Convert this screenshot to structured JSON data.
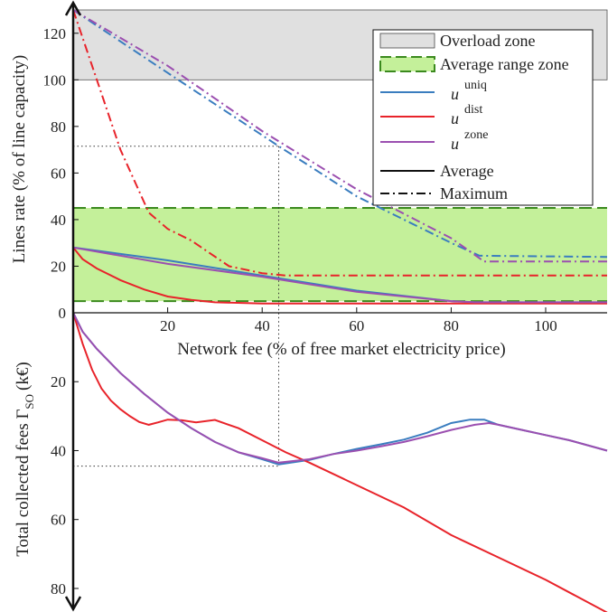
{
  "colors": {
    "uniq": "#3a7dbf",
    "dist": "#e8232a",
    "zone": "#9b4fb0",
    "overload_fill": "#e0e0e0",
    "avg_fill": "#c4f09a",
    "avg_border": "#3b8a1e",
    "guide": "#333333"
  },
  "chart_data": [
    {
      "type": "line",
      "xlabel": "Network fee (% of free market electricity price)",
      "ylabel": "Lines rate (% of line capacity)",
      "xlim": [
        0,
        113
      ],
      "ylim": [
        0,
        130
      ],
      "xticks": [
        20,
        40,
        60,
        80,
        100
      ],
      "yticks": [
        0,
        20,
        40,
        60,
        80,
        100,
        120
      ],
      "grid": false,
      "legend_position": "top-right",
      "legend": {
        "overload": "Overload zone",
        "average_range": "Average range zone",
        "uniq_base": "u",
        "uniq_sup": "uniq",
        "dist_base": "u",
        "dist_sup": "dist",
        "zone_base": "u",
        "zone_sup": "zone",
        "average": "Average",
        "maximum": "Maximum"
      },
      "zones": {
        "overload": [
          100,
          130
        ],
        "average_range": [
          5,
          45
        ]
      },
      "guide": {
        "x": 43.5,
        "y": 71.5
      },
      "series": [
        {
          "name": "u uniq",
          "key": "uniq",
          "stat": "Average",
          "x": [
            0,
            20,
            40,
            60,
            80,
            85,
            113
          ],
          "y": [
            28,
            22.5,
            16,
            9.5,
            5,
            4.5,
            4.5
          ]
        },
        {
          "name": "u uniq",
          "key": "uniq",
          "stat": "Maximum",
          "x": [
            0,
            20,
            43.5,
            60,
            80,
            86,
            113
          ],
          "y": [
            130,
            103,
            71.5,
            50,
            30,
            24.5,
            24
          ]
        },
        {
          "name": "u dist",
          "key": "dist",
          "stat": "Average",
          "x": [
            0,
            2,
            5,
            10,
            15,
            20,
            25,
            30,
            40,
            113
          ],
          "y": [
            28,
            23,
            19,
            14,
            10,
            7,
            5.5,
            4.5,
            4,
            4
          ]
        },
        {
          "name": "u dist",
          "key": "dist",
          "stat": "Maximum",
          "x": [
            0,
            5,
            10,
            16,
            20,
            25,
            33,
            40,
            45,
            113
          ],
          "y": [
            130,
            100,
            70,
            43,
            36,
            31,
            20,
            17,
            16,
            16
          ]
        },
        {
          "name": "u zone",
          "key": "zone",
          "stat": "Average",
          "x": [
            0,
            20,
            40,
            60,
            80,
            85,
            113
          ],
          "y": [
            28,
            21,
            15.5,
            9,
            5,
            4.5,
            4.5
          ]
        },
        {
          "name": "u zone",
          "key": "zone",
          "stat": "Maximum",
          "x": [
            0,
            20,
            40,
            60,
            80,
            87,
            113
          ],
          "y": [
            130,
            106,
            78,
            53,
            32,
            22,
            22
          ]
        }
      ]
    },
    {
      "type": "line",
      "ylabel_base": "Total collected fees Γ",
      "ylabel_sub": "SO",
      "ylabel_unit": "(k€)",
      "xlim": [
        0,
        113
      ],
      "ylim": [
        0,
        85
      ],
      "y_reversed": true,
      "yticks": [
        20,
        40,
        60,
        80
      ],
      "guide": {
        "x": 43.5,
        "y": 44.5
      },
      "series": [
        {
          "name": "u uniq",
          "key": "uniq",
          "x": [
            0,
            2,
            5,
            10,
            15,
            20,
            25,
            30,
            35,
            40,
            43.5,
            50,
            55,
            60,
            65,
            70,
            75,
            80,
            84,
            87,
            90,
            95,
            100,
            105,
            113
          ],
          "y": [
            0,
            5.5,
            10.5,
            17.5,
            23.5,
            29,
            33.5,
            37.5,
            40.5,
            42.5,
            44,
            42.7,
            41,
            39.5,
            38.2,
            36.8,
            34.8,
            32,
            31,
            31,
            32.5,
            34,
            35.5,
            37,
            40
          ]
        },
        {
          "name": "u dist",
          "key": "dist",
          "x": [
            0,
            2,
            4,
            6,
            8,
            10,
            12,
            14,
            16,
            18,
            20,
            23,
            26,
            30,
            35,
            40,
            45,
            50,
            60,
            70,
            80,
            90,
            100,
            113
          ],
          "y": [
            0,
            9,
            16.5,
            22,
            25.5,
            28,
            30,
            31.7,
            32.5,
            31.8,
            31,
            31.2,
            31.8,
            31.1,
            33.5,
            37,
            40.5,
            43.5,
            50,
            56.5,
            64.5,
            71,
            77.5,
            87
          ]
        },
        {
          "name": "u zone",
          "key": "zone",
          "x": [
            0,
            2,
            5,
            10,
            15,
            20,
            25,
            30,
            35,
            40,
            43.5,
            50,
            55,
            60,
            65,
            70,
            75,
            80,
            85,
            88,
            90,
            95,
            100,
            105,
            113
          ],
          "y": [
            0,
            5.5,
            10.5,
            17.5,
            23.5,
            29,
            33.5,
            37.5,
            40.5,
            42.2,
            43.5,
            42.5,
            41,
            40,
            38.8,
            37.5,
            35.8,
            34,
            32.5,
            32,
            32.5,
            34,
            35.5,
            37,
            40
          ]
        }
      ]
    }
  ]
}
